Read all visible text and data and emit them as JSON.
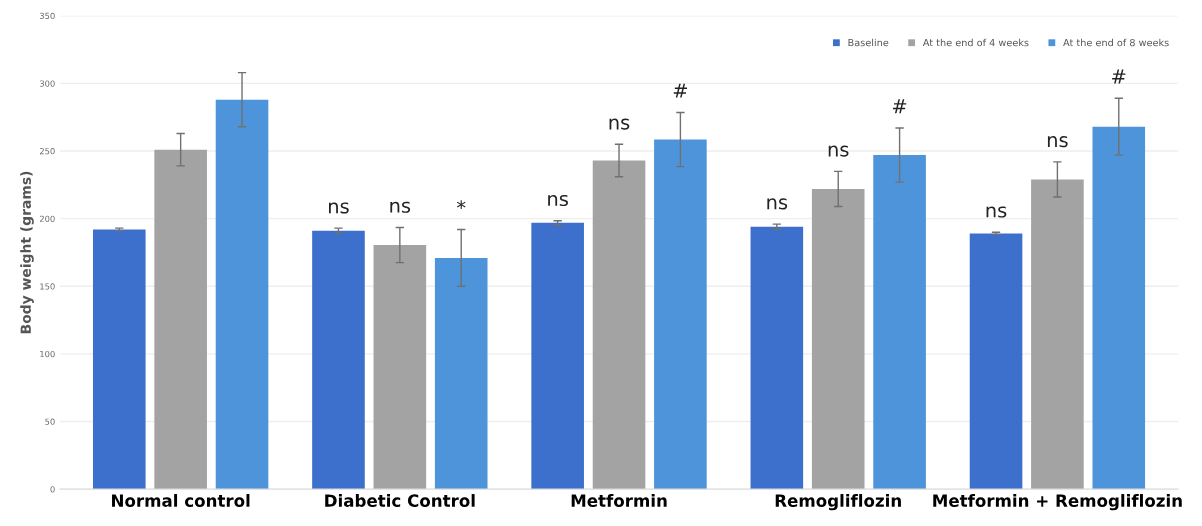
{
  "chart_data": {
    "type": "bar",
    "ylabel": "Body weight (grams)",
    "categories": [
      "Normal control",
      "Diabetic Control",
      "Metformin",
      "Remogliflozin",
      "Metformin + Remogliflozin"
    ],
    "series": [
      {
        "name": "Baseline",
        "color": "#3d6fcc",
        "values": [
          192,
          191,
          197,
          194,
          189
        ],
        "errors": [
          1,
          2,
          1.5,
          2,
          1
        ],
        "value_labels": [
          null,
          "ns",
          "ns",
          "ns",
          "ns"
        ]
      },
      {
        "name": "At the end of 4 weeks",
        "color": "#a3a3a3",
        "values": [
          251,
          180.5,
          243,
          222,
          229
        ],
        "errors": [
          12,
          13,
          12,
          13,
          13
        ],
        "value_labels": [
          null,
          "ns",
          "ns",
          "ns",
          "ns"
        ]
      },
      {
        "name": "At the end of 8 weeks",
        "color": "#4e94db",
        "values": [
          288,
          171,
          258.5,
          247,
          268
        ],
        "errors": [
          20,
          21,
          20,
          20,
          21
        ],
        "value_labels": [
          null,
          "*",
          "#",
          "#",
          "#"
        ]
      }
    ],
    "ylim": [
      0,
      350
    ],
    "yticks": [
      0,
      50,
      100,
      150,
      200,
      250,
      300,
      350
    ],
    "grid": "y",
    "legend": "top right"
  }
}
